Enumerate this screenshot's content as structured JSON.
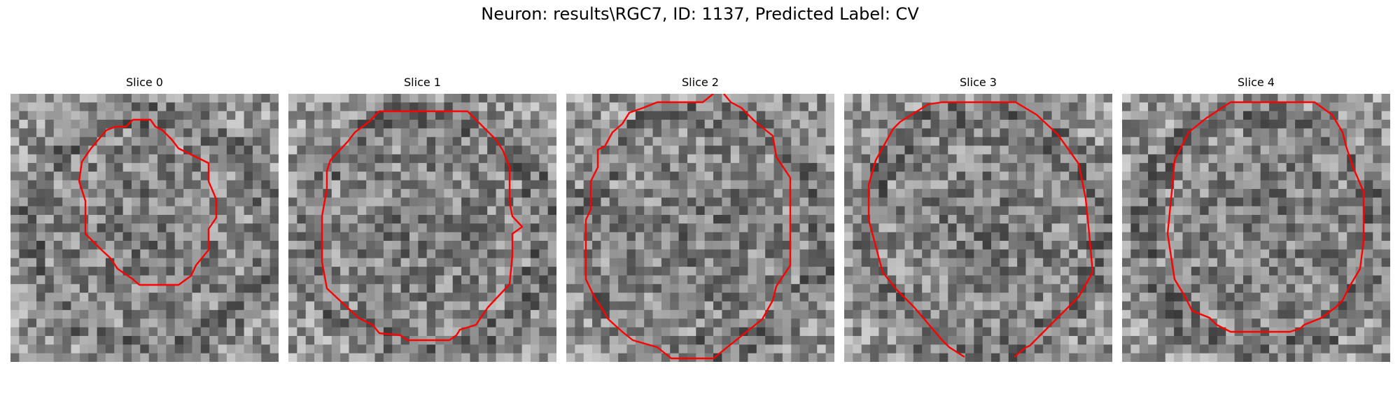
{
  "figure": {
    "title": "Neuron: results\\RGC7, ID: 1137, Predicted Label: CV",
    "contour_color": "#ff0000"
  },
  "panels": [
    {
      "title": "Slice 0"
    },
    {
      "title": "Slice 1"
    },
    {
      "title": "Slice 2"
    },
    {
      "title": "Slice 3"
    },
    {
      "title": "Slice 4"
    }
  ]
}
